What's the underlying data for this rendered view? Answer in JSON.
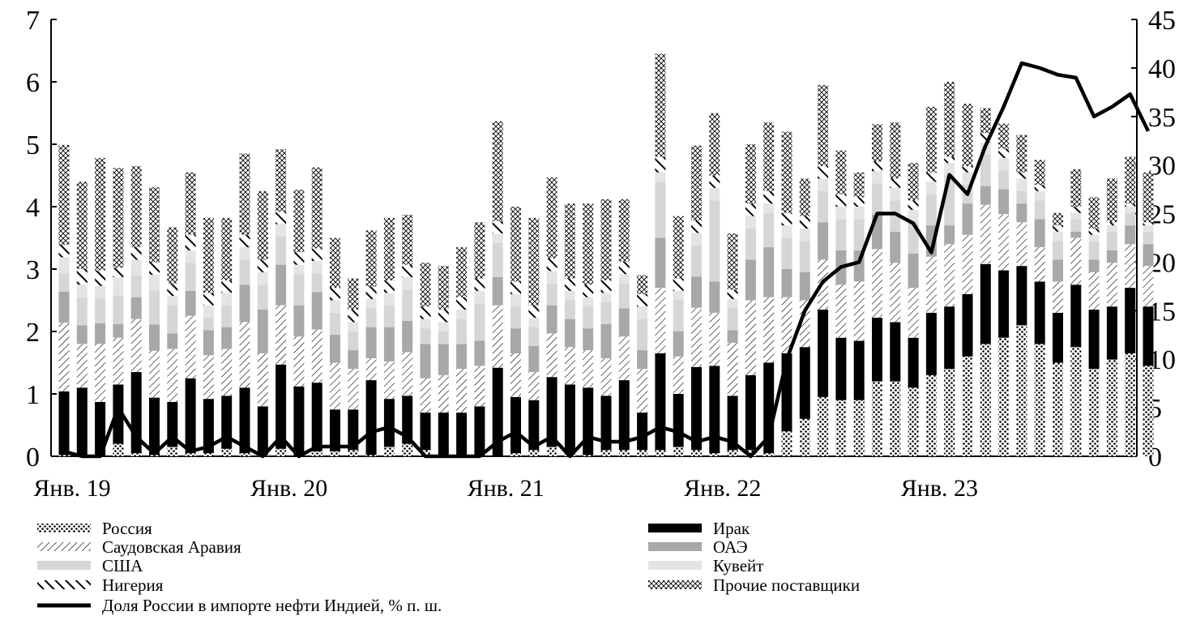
{
  "chart_data": {
    "type": "bar",
    "stacked": true,
    "x_tick_labels": [
      "Янв. 19",
      "Янв. 20",
      "Янв. 21",
      "Янв. 22",
      "Янв. 23"
    ],
    "x_tick_month_index": [
      0,
      12,
      24,
      36,
      48
    ],
    "ylim_left": [
      0,
      7
    ],
    "y_ticks_left": [
      0,
      1,
      2,
      3,
      4,
      5,
      6,
      7
    ],
    "ylim_right": [
      0,
      45
    ],
    "y_ticks_right": [
      0,
      5,
      10,
      15,
      20,
      25,
      30,
      35,
      40,
      45
    ],
    "legend_position": "bottom",
    "grid": false,
    "series": [
      {
        "name": "Россия",
        "pattern": "dots",
        "values": [
          0.02,
          0,
          0,
          0.2,
          0.05,
          0.02,
          0.15,
          0.05,
          0.05,
          0.12,
          0.05,
          0.02,
          0.12,
          0,
          0.08,
          0.08,
          0.1,
          0.02,
          0.15,
          0.2,
          0.1,
          0,
          0,
          0,
          0,
          0.05,
          0.1,
          0.15,
          0.05,
          0.02,
          0.1,
          0.1,
          0.1,
          0.1,
          0.15,
          0.1,
          0.05,
          0.1,
          0.1,
          0.05,
          0.4,
          0.6,
          0.95,
          0.9,
          0.9,
          1.2,
          1.2,
          1.1,
          1.3,
          1.4,
          1.6,
          1.8,
          1.9,
          2.1,
          1.8,
          1.5,
          1.75,
          1.4,
          1.55,
          1.65,
          1.45
        ]
      },
      {
        "name": "Ирак",
        "pattern": "solid",
        "values": [
          1.02,
          1.1,
          0.87,
          0.95,
          1.3,
          0.92,
          0.72,
          1.2,
          0.87,
          0.85,
          1.05,
          0.78,
          1.35,
          1.12,
          1.1,
          0.67,
          0.65,
          1.2,
          0.77,
          0.77,
          0.6,
          0.7,
          0.7,
          0.8,
          1.42,
          0.9,
          0.8,
          1.12,
          1.1,
          1.08,
          0.87,
          1.12,
          0.6,
          1.55,
          0.85,
          1.33,
          1.4,
          0.87,
          1.2,
          1.45,
          1.25,
          1.15,
          1.4,
          1.0,
          0.95,
          1.02,
          0.95,
          0.8,
          1.0,
          1.0,
          1.0,
          1.28,
          1.08,
          0.95,
          1.0,
          0.8,
          1.0,
          0.95,
          0.85,
          1.05,
          0.95
        ]
      },
      {
        "name": "Саудовская Аравия",
        "pattern": "diagonal-thin",
        "values": [
          1.1,
          0.7,
          0.93,
          0.75,
          0.85,
          0.75,
          0.85,
          1.0,
          0.7,
          0.75,
          1.05,
          0.85,
          0.95,
          0.8,
          0.85,
          0.75,
          0.65,
          0.35,
          0.6,
          0.7,
          0.55,
          0.6,
          0.7,
          0.65,
          1.0,
          0.7,
          0.45,
          0.7,
          0.6,
          0.6,
          0.6,
          0.7,
          0.7,
          1.05,
          0.6,
          0.95,
          0.85,
          0.85,
          1.2,
          1.05,
          0.9,
          0.75,
          0.8,
          0.85,
          0.95,
          1.1,
          0.95,
          0.8,
          0.9,
          1.0,
          0.95,
          0.95,
          0.9,
          0.7,
          0.55,
          0.5,
          0.75,
          0.6,
          0.7,
          0.7,
          0.65
        ]
      },
      {
        "name": "ОАЭ",
        "pattern": "gray",
        "values": [
          0.5,
          0.3,
          0.33,
          0.22,
          0.35,
          0.42,
          0.25,
          0.4,
          0.4,
          0.35,
          0.6,
          0.7,
          0.65,
          0.5,
          0.6,
          0.45,
          0.3,
          0.5,
          0.55,
          0.5,
          0.55,
          0.5,
          0.4,
          0.4,
          0.45,
          0.4,
          0.42,
          0.45,
          0.45,
          0.35,
          0.55,
          0.45,
          0.3,
          0.8,
          0.4,
          0.5,
          0.5,
          0.2,
          0.65,
          0.8,
          0.45,
          0.45,
          0.6,
          0.55,
          0.5,
          0.55,
          0.5,
          0.55,
          0.5,
          0.3,
          0.5,
          0.3,
          0.4,
          0.3,
          0.45,
          0.35,
          0.1,
          0.2,
          0.2,
          0.3,
          0.35
        ]
      },
      {
        "name": "США",
        "pattern": "light-gray",
        "values": [
          0.3,
          0.45,
          0.4,
          0.45,
          0.35,
          0.55,
          0.45,
          0.45,
          0.2,
          0.35,
          0.4,
          0.4,
          0.45,
          0.5,
          0.3,
          0.35,
          0.3,
          0.3,
          0.35,
          0.5,
          0.25,
          0.2,
          0.4,
          0.6,
          0.55,
          0.35,
          0.3,
          0.35,
          0.3,
          0.35,
          0.35,
          0.4,
          0.5,
          0.9,
          0.5,
          0.5,
          1.3,
          0.35,
          0.5,
          0.55,
          0.5,
          0.5,
          0.5,
          0.5,
          0.5,
          0.5,
          0.5,
          0.5,
          0.5,
          0.8,
          0.3,
          0.5,
          0.3,
          0.2,
          0.3,
          0.3,
          0.2,
          0.3,
          0.3,
          0.2,
          0.2
        ]
      },
      {
        "name": "Кувейт",
        "pattern": "lighter-gray",
        "values": [
          0.25,
          0.2,
          0.2,
          0.3,
          0.25,
          0.25,
          0.15,
          0.2,
          0.2,
          0.2,
          0.2,
          0.2,
          0.2,
          0.15,
          0.2,
          0.2,
          0.15,
          0.15,
          0.2,
          0.2,
          0.15,
          0.15,
          0.15,
          0.2,
          0.15,
          0.2,
          0.15,
          0.2,
          0.15,
          0.15,
          0.15,
          0.15,
          0.2,
          0.15,
          0.15,
          0.2,
          0.2,
          0.15,
          0.2,
          0.15,
          0.2,
          0.2,
          0.2,
          0.2,
          0.2,
          0.2,
          0.2,
          0.2,
          0.2,
          0.2,
          0.2,
          0.2,
          0.2,
          0.2,
          0.15,
          0.15,
          0.1,
          0.1,
          0.1,
          0.1,
          0.1
        ]
      },
      {
        "name": "Нигерия",
        "pattern": "diagonal-thick",
        "values": [
          0.2,
          0.25,
          0.25,
          0.15,
          0.2,
          0.2,
          0.2,
          0.25,
          0.2,
          0.2,
          0.2,
          0.2,
          0.2,
          0.2,
          0.2,
          0.2,
          0.2,
          0.2,
          0.2,
          0.2,
          0.2,
          0.2,
          0.2,
          0.2,
          0.2,
          0.2,
          0.2,
          0.2,
          0.2,
          0.2,
          0.2,
          0.2,
          0.2,
          0.25,
          0.2,
          0.2,
          0.2,
          0.15,
          0.2,
          0.2,
          0.2,
          0.2,
          0.2,
          0.2,
          0.15,
          0.15,
          0.15,
          0.15,
          0.15,
          0.1,
          0.1,
          0.15,
          0.15,
          0.1,
          0.1,
          0.1,
          0.1,
          0.1,
          0.05,
          0.05,
          0.05
        ]
      },
      {
        "name": "Прочие поставщики",
        "pattern": "crosshatch",
        "values": [
          1.6,
          1.4,
          1.8,
          1.6,
          1.3,
          1.2,
          0.9,
          1.0,
          1.2,
          1.0,
          1.3,
          1.1,
          1.0,
          1.0,
          1.3,
          0.8,
          0.5,
          0.9,
          1.0,
          0.8,
          0.7,
          0.7,
          0.8,
          0.9,
          1.6,
          1.2,
          1.4,
          1.3,
          1.2,
          1.3,
          1.3,
          1.0,
          0.3,
          1.65,
          1.0,
          1.2,
          1.0,
          0.9,
          0.95,
          1.1,
          1.3,
          0.6,
          1.3,
          0.7,
          0.4,
          0.6,
          0.9,
          0.6,
          1.05,
          1.2,
          1.0,
          0.4,
          0.4,
          0.6,
          0.4,
          0.2,
          0.6,
          0.5,
          0.7,
          0.75,
          0.8
        ]
      }
    ],
    "line_series": {
      "name": "Доля России в импорте нефти Индией, % п. ш.",
      "axis": "right",
      "values": [
        0.5,
        0,
        0,
        5,
        2,
        0.3,
        2,
        0.5,
        1,
        2,
        1,
        0,
        2,
        0,
        1,
        1,
        1,
        2.5,
        3,
        2,
        0,
        0,
        0,
        0,
        1.5,
        2.5,
        1,
        2,
        0,
        2,
        1.5,
        1.5,
        2,
        3,
        2.5,
        1.5,
        2,
        1.5,
        0,
        2,
        10,
        15,
        18,
        19.5,
        20,
        25,
        25,
        24,
        21,
        29,
        27,
        32,
        36,
        40.5,
        40,
        39.3,
        39,
        35,
        36,
        37.3,
        33.5
      ]
    }
  }
}
